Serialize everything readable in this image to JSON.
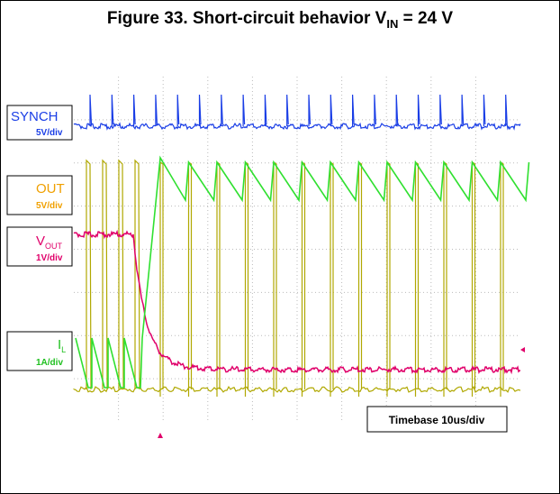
{
  "title": {
    "text": "Figure 33. Short-circuit behavior V",
    "sub": "IN",
    "rest": " = 24 V"
  },
  "channels": [
    {
      "name": "SYNCH",
      "scale": "5V/div"
    },
    {
      "name": "OUT",
      "scale": "5V/div"
    },
    {
      "name": "V",
      "sub": "OUT",
      "scale": "1V/div"
    },
    {
      "name": "I",
      "sub": "L",
      "scale": "1A/div"
    }
  ],
  "timebase": "Timebase 10us/div"
}
